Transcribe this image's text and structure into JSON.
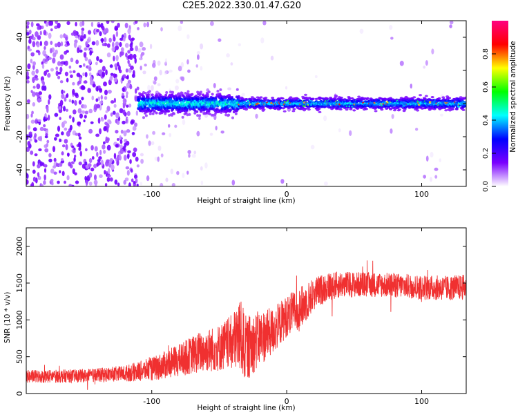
{
  "title": "C2E5.2022.330.01.47.G20",
  "chart_data": [
    {
      "type": "heatmap",
      "name": "spectrogram",
      "xlabel": "Height of straight line (km)",
      "ylabel": "Frequency (Hz)",
      "xlim": [
        -193,
        133
      ],
      "ylim": [
        -50,
        50
      ],
      "x_ticks": [
        -100,
        0,
        100
      ],
      "y_ticks": [
        -40,
        -20,
        0,
        20,
        40
      ],
      "colorbar": {
        "label": "Normalized spectral amplitude",
        "range": [
          0,
          1
        ],
        "ticks": [
          "0.0",
          "0.2",
          "0.4",
          "0.6",
          "0.8"
        ],
        "tick_values": [
          0.0,
          0.2,
          0.4,
          0.6,
          0.8
        ],
        "colors": [
          "#ffffff",
          "#7a00ff",
          "#0000ff",
          "#00ffff",
          "#00ff00",
          "#ffff00",
          "#ff0000",
          "#ff0080"
        ]
      },
      "description_of_signal": {
        "noise_region_x": [
          -193,
          -110
        ],
        "signal_center_hz": 0,
        "signal_onset_x": -110,
        "narrowband_from_x": -35
      }
    },
    {
      "type": "line",
      "name": "snr",
      "xlabel": "Height of straight line (km)",
      "ylabel": "SNR (10 * v/v)",
      "xlim": [
        -193,
        133
      ],
      "ylim": [
        0,
        2250
      ],
      "x_ticks": [
        -100,
        0,
        100
      ],
      "y_ticks": [
        0,
        500,
        1000,
        1500,
        2000
      ],
      "color": "#f03030",
      "envelope": {
        "x": [
          -193,
          -150,
          -120,
          -100,
          -80,
          -65,
          -50,
          -40,
          -35,
          -30,
          -20,
          -10,
          0,
          10,
          20,
          30,
          40,
          60,
          80,
          100,
          120,
          133
        ],
        "mean": [
          230,
          240,
          270,
          330,
          450,
          560,
          620,
          700,
          800,
          600,
          750,
          850,
          1050,
          1150,
          1350,
          1450,
          1480,
          1480,
          1470,
          1440,
          1430,
          1450
        ],
        "spread": [
          90,
          90,
          110,
          160,
          220,
          280,
          320,
          380,
          520,
          450,
          380,
          320,
          280,
          300,
          220,
          200,
          180,
          170,
          170,
          170,
          170,
          170
        ]
      }
    }
  ]
}
